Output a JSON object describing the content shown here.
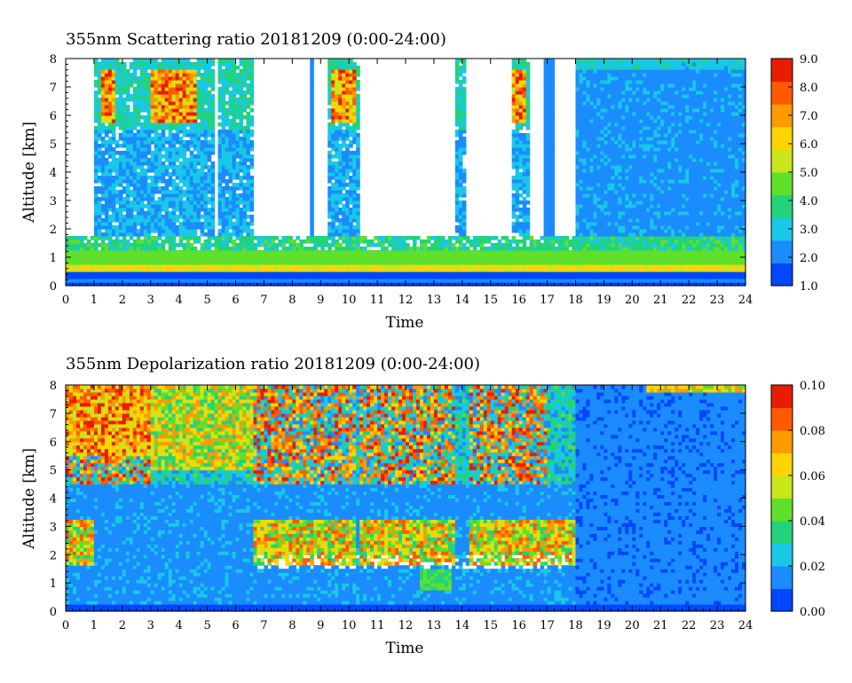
{
  "chart_data": [
    {
      "type": "heatmap",
      "title": "355nm Scattering ratio  20181209 (0:00-24:00)",
      "xlabel": "Time",
      "ylabel": "Altitude [km]",
      "x_ticks": [
        "0",
        "1",
        "2",
        "3",
        "4",
        "5",
        "6",
        "7",
        "8",
        "9",
        "10",
        "11",
        "12",
        "13",
        "14",
        "15",
        "16",
        "17",
        "18",
        "19",
        "20",
        "21",
        "22",
        "23",
        "24"
      ],
      "y_ticks": [
        "0",
        "1",
        "2",
        "3",
        "4",
        "5",
        "6",
        "7",
        "8"
      ],
      "xlim": [
        0,
        24
      ],
      "ylim": [
        0,
        8
      ],
      "colorbar": {
        "labels": [
          "1.0",
          "2.0",
          "3.0",
          "4.0",
          "5.0",
          "6.0",
          "7.0",
          "8.0",
          "9.0"
        ],
        "min": 1.0,
        "max": 9.0
      },
      "features": {
        "surface_layer_top_km": 1.7,
        "cloud_columns_hours": [
          [
            1.0,
            2.6
          ],
          [
            2.6,
            5.2
          ],
          [
            5.4,
            6.6
          ],
          [
            9.3,
            10.4
          ],
          [
            13.7,
            14.1
          ],
          [
            15.7,
            16.4
          ],
          [
            18.0,
            24.0
          ]
        ],
        "cloud_cores_hours": [
          [
            1.2,
            1.8
          ],
          [
            3.0,
            4.6
          ],
          [
            9.4,
            10.3
          ],
          [
            15.8,
            16.3
          ]
        ]
      }
    },
    {
      "type": "heatmap",
      "title": "355nm Depolarization ratio  20181209 (0:00-24:00)",
      "xlabel": "Time",
      "ylabel": "Altitude [km]",
      "x_ticks": [
        "0",
        "1",
        "2",
        "3",
        "4",
        "5",
        "6",
        "7",
        "8",
        "9",
        "10",
        "11",
        "12",
        "13",
        "14",
        "15",
        "16",
        "17",
        "18",
        "19",
        "20",
        "21",
        "22",
        "23",
        "24"
      ],
      "y_ticks": [
        "0",
        "1",
        "2",
        "3",
        "4",
        "5",
        "6",
        "7",
        "8"
      ],
      "xlim": [
        0,
        24
      ],
      "ylim": [
        0,
        8
      ],
      "colorbar": {
        "labels": [
          "0.00",
          "0.02",
          "0.04",
          "0.06",
          "0.08",
          "0.10"
        ],
        "min": 0.0,
        "max": 0.1
      },
      "features": {
        "high_depol_periods_hours": [
          [
            0.0,
            3.0
          ],
          [
            6.6,
            10.3
          ],
          [
            10.4,
            13.8
          ],
          [
            14.2,
            17.0
          ]
        ],
        "low_depol_after_hour": 18.0
      }
    }
  ],
  "colors": {
    "scale": [
      "#0047ff",
      "#1a8cff",
      "#19c8e6",
      "#23d37a",
      "#5fe02b",
      "#c8e61a",
      "#ffd400",
      "#ff9a00",
      "#ff5a00",
      "#e81c00"
    ],
    "missing": "#ffffff"
  }
}
